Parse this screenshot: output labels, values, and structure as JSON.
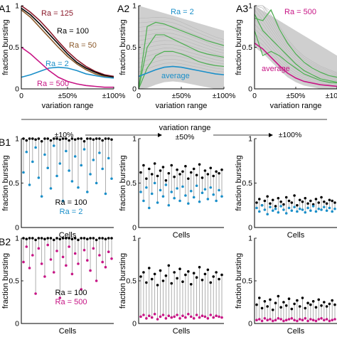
{
  "figure": {
    "panel_labels": [
      "A1",
      "A2",
      "A3",
      "B1",
      "B2"
    ],
    "center_arrow": {
      "title": "variation range",
      "tick_labels": [
        "±10%",
        "±50%",
        "±100%"
      ]
    }
  },
  "chart_data": [
    {
      "id": "A1",
      "type": "line",
      "xlabel": "variation range",
      "ylabel": "fraction bursting",
      "x_ticks": [
        "0",
        "±50%",
        "±100%"
      ],
      "y_ticks": [
        "0",
        "0.5",
        "1"
      ],
      "xlim": [
        0,
        100
      ],
      "ylim": [
        0,
        1
      ],
      "x": [
        0,
        10,
        20,
        30,
        40,
        50,
        60,
        70,
        80,
        90,
        100
      ],
      "series": [
        {
          "name": "Ra = 125",
          "color": "#8b1a2b",
          "values": [
            1.0,
            0.92,
            0.82,
            0.7,
            0.57,
            0.45,
            0.35,
            0.27,
            0.21,
            0.17,
            0.15
          ]
        },
        {
          "name": "Ra = 100",
          "color": "#000000",
          "values": [
            0.97,
            0.89,
            0.78,
            0.66,
            0.54,
            0.42,
            0.32,
            0.25,
            0.2,
            0.16,
            0.14
          ]
        },
        {
          "name": "Ra = 50",
          "color": "#8b5a2b",
          "values": [
            0.95,
            0.86,
            0.74,
            0.62,
            0.5,
            0.39,
            0.3,
            0.23,
            0.18,
            0.15,
            0.13
          ]
        },
        {
          "name": "Ra = 2",
          "color": "#1a8fc9",
          "values": [
            0.14,
            0.17,
            0.21,
            0.25,
            0.26,
            0.25,
            0.22,
            0.18,
            0.16,
            0.14,
            0.13
          ]
        },
        {
          "name": "Ra = 500",
          "color": "#c71585",
          "values": [
            0.5,
            0.42,
            0.32,
            0.22,
            0.14,
            0.09,
            0.06,
            0.04,
            0.03,
            0.02,
            0.02
          ]
        }
      ]
    },
    {
      "id": "A2",
      "type": "line",
      "xlabel": "variation range",
      "ylabel": "fraction bursting",
      "x_ticks": [
        "0",
        "±50%",
        "±100%"
      ],
      "y_ticks": [
        "0",
        "0.5",
        "1"
      ],
      "xlim": [
        0,
        100
      ],
      "ylim": [
        0,
        1
      ],
      "annotations": [
        "Ra = 2",
        "average"
      ],
      "x": [
        0,
        10,
        20,
        30,
        40,
        50,
        60,
        70,
        80,
        90,
        100
      ],
      "series": [
        {
          "name": "average",
          "color": "#1a8fc9",
          "values": [
            0.15,
            0.19,
            0.23,
            0.26,
            0.27,
            0.26,
            0.24,
            0.22,
            0.2,
            0.18,
            0.17
          ]
        }
      ],
      "highlight_lines": {
        "color": "#4caf50",
        "lines": [
          [
            0.0,
            0.5,
            0.65,
            0.65,
            0.6,
            0.55,
            0.5,
            0.45,
            0.42,
            0.4,
            0.38
          ],
          [
            0.0,
            0.25,
            0.4,
            0.45,
            0.45,
            0.42,
            0.38,
            0.33,
            0.3,
            0.28,
            0.27
          ],
          [
            0.0,
            0.75,
            0.8,
            0.78,
            0.74,
            0.7,
            0.66,
            0.62,
            0.58,
            0.55,
            0.52
          ]
        ]
      }
    },
    {
      "id": "A3",
      "type": "line",
      "xlabel": "variation range",
      "ylabel": "fraction bursting",
      "x_ticks": [
        "0",
        "±50%",
        "±100%"
      ],
      "y_ticks": [
        "0",
        "0.5",
        "1"
      ],
      "xlim": [
        0,
        100
      ],
      "ylim": [
        0,
        1
      ],
      "annotations": [
        "Ra = 500",
        "average"
      ],
      "x": [
        0,
        10,
        20,
        30,
        40,
        50,
        60,
        70,
        80,
        90,
        100
      ],
      "series": [
        {
          "name": "average",
          "color": "#c71585",
          "values": [
            0.55,
            0.48,
            0.38,
            0.28,
            0.19,
            0.13,
            0.09,
            0.07,
            0.05,
            0.04,
            0.03
          ]
        }
      ],
      "highlight_lines": {
        "color": "#4caf50",
        "lines": [
          [
            0.85,
            0.82,
            0.95,
            0.72,
            0.55,
            0.42,
            0.32,
            0.25,
            0.2,
            0.16,
            0.14
          ],
          [
            0.7,
            0.4,
            0.45,
            0.4,
            0.32,
            0.25,
            0.18,
            0.14,
            0.1,
            0.08,
            0.07
          ],
          [
            0.9,
            0.7,
            0.6,
            0.5,
            0.4,
            0.3,
            0.22,
            0.17,
            0.12,
            0.1,
            0.08
          ]
        ]
      }
    },
    {
      "id": "B1",
      "type": "scatter",
      "ylabel": "fraction bursting",
      "xlabel": "Cells",
      "y_ticks": [
        "0",
        "0.5",
        "1"
      ],
      "ylim": [
        0,
        1
      ],
      "legend": [
        "Ra = 100",
        "Ra = 2"
      ],
      "columns": [
        {
          "range": "±10%",
          "ref_name": "Ra = 100",
          "cmp_name": "Ra = 2",
          "ref": [
            1.0,
            0.98,
            1.0,
            1.0,
            0.99,
            1.0,
            0.97,
            1.0,
            1.0,
            0.98,
            1.0,
            1.0,
            0.99,
            1.0,
            1.0,
            0.98,
            1.0,
            0.99,
            1.0,
            1.0,
            0.97,
            1.0,
            1.0,
            0.99,
            1.0,
            1.0,
            0.98,
            1.0,
            1.0,
            0.99
          ],
          "cmp": [
            0.62,
            0.85,
            0.48,
            0.74,
            0.9,
            0.56,
            0.35,
            0.82,
            0.67,
            0.44,
            0.92,
            0.58,
            0.72,
            0.3,
            0.86,
            0.64,
            0.52,
            0.8,
            0.45,
            0.7,
            0.88,
            0.4,
            0.6,
            0.76,
            0.5,
            0.84,
            0.66,
            0.38,
            0.78,
            0.55
          ]
        },
        {
          "range": "±50%",
          "ref_name": "Ra = 100",
          "cmp_name": "Ra = 2",
          "ref": [
            0.62,
            0.7,
            0.55,
            0.66,
            0.6,
            0.72,
            0.58,
            0.64,
            0.68,
            0.53,
            0.61,
            0.7,
            0.57,
            0.65,
            0.6,
            0.63,
            0.69,
            0.55,
            0.62,
            0.66,
            0.59,
            0.71,
            0.56,
            0.64,
            0.6,
            0.67,
            0.58,
            0.63,
            0.61,
            0.65
          ],
          "cmp": [
            0.4,
            0.3,
            0.45,
            0.22,
            0.38,
            0.5,
            0.28,
            0.42,
            0.35,
            0.48,
            0.25,
            0.4,
            0.33,
            0.44,
            0.3,
            0.46,
            0.36,
            0.27,
            0.41,
            0.34,
            0.47,
            0.29,
            0.39,
            0.43,
            0.32,
            0.45,
            0.37,
            0.3,
            0.42,
            0.35
          ]
        },
        {
          "range": "±100%",
          "ref_name": "Ra = 100",
          "cmp_name": "Ra = 2",
          "ref": [
            0.28,
            0.32,
            0.25,
            0.3,
            0.35,
            0.27,
            0.31,
            0.24,
            0.33,
            0.29,
            0.26,
            0.34,
            0.3,
            0.28,
            0.36,
            0.25,
            0.31,
            0.29,
            0.33,
            0.27,
            0.3,
            0.26,
            0.32,
            0.28,
            0.34,
            0.29,
            0.27,
            0.31,
            0.3,
            0.28
          ],
          "cmp": [
            0.22,
            0.18,
            0.25,
            0.2,
            0.15,
            0.23,
            0.19,
            0.21,
            0.17,
            0.24,
            0.2,
            0.16,
            0.22,
            0.19,
            0.23,
            0.18,
            0.21,
            0.2,
            0.17,
            0.22,
            0.19,
            0.24,
            0.18,
            0.21,
            0.2,
            0.23,
            0.19,
            0.22,
            0.18,
            0.21
          ]
        }
      ]
    },
    {
      "id": "B2",
      "type": "scatter",
      "ylabel": "fraction bursting",
      "xlabel": "Cells",
      "y_ticks": [
        "0",
        "0.5",
        "1"
      ],
      "ylim": [
        0,
        1
      ],
      "legend": [
        "Ra = 100",
        "Ra = 500"
      ],
      "columns": [
        {
          "range": "±10%",
          "ref_name": "Ra = 100",
          "cmp_name": "Ra = 500",
          "ref": [
            1.0,
            0.99,
            1.0,
            1.0,
            0.98,
            1.0,
            1.0,
            0.99,
            1.0,
            1.0,
            0.98,
            1.0,
            0.99,
            1.0,
            1.0,
            1.0,
            0.99,
            1.0,
            0.98,
            1.0,
            1.0,
            0.99,
            1.0,
            1.0,
            0.98,
            1.0,
            1.0,
            0.99,
            1.0,
            1.0
          ],
          "cmp": [
            0.72,
            0.9,
            0.65,
            0.8,
            0.35,
            0.88,
            0.7,
            0.55,
            0.92,
            0.75,
            0.6,
            0.85,
            0.3,
            0.78,
            0.68,
            0.9,
            0.58,
            0.82,
            0.7,
            0.4,
            0.86,
            0.74,
            0.62,
            0.88,
            0.5,
            0.8,
            0.72,
            0.66,
            0.84,
            0.76
          ]
        },
        {
          "range": "±50%",
          "ref_name": "Ra = 100",
          "cmp_name": "Ra = 500",
          "ref": [
            0.55,
            0.6,
            0.48,
            0.65,
            0.52,
            0.58,
            0.45,
            0.62,
            0.5,
            0.56,
            0.68,
            0.47,
            0.6,
            0.53,
            0.64,
            0.49,
            0.57,
            0.61,
            0.46,
            0.59,
            0.54,
            0.66,
            0.51,
            0.58,
            0.63,
            0.48,
            0.55,
            0.6,
            0.52,
            0.57
          ],
          "cmp": [
            0.08,
            0.1,
            0.06,
            0.09,
            0.07,
            0.11,
            0.05,
            0.08,
            0.1,
            0.06,
            0.09,
            0.07,
            0.08,
            0.1,
            0.06,
            0.09,
            0.07,
            0.11,
            0.08,
            0.06,
            0.1,
            0.07,
            0.09,
            0.08,
            0.06,
            0.1,
            0.07,
            0.09,
            0.08,
            0.07
          ]
        },
        {
          "range": "±100%",
          "ref_name": "Ra = 100",
          "cmp_name": "Ra = 500",
          "ref": [
            0.22,
            0.3,
            0.18,
            0.26,
            0.2,
            0.28,
            0.16,
            0.24,
            0.32,
            0.19,
            0.25,
            0.21,
            0.29,
            0.17,
            0.23,
            0.27,
            0.2,
            0.3,
            0.18,
            0.24,
            0.22,
            0.26,
            0.19,
            0.28,
            0.21,
            0.25,
            0.2,
            0.23,
            0.27,
            0.22
          ],
          "cmp": [
            0.04,
            0.05,
            0.03,
            0.06,
            0.04,
            0.05,
            0.03,
            0.04,
            0.06,
            0.05,
            0.03,
            0.04,
            0.05,
            0.06,
            0.04,
            0.03,
            0.05,
            0.04,
            0.06,
            0.03,
            0.05,
            0.04,
            0.03,
            0.05,
            0.06,
            0.04,
            0.05,
            0.03,
            0.04,
            0.05
          ]
        }
      ]
    }
  ]
}
